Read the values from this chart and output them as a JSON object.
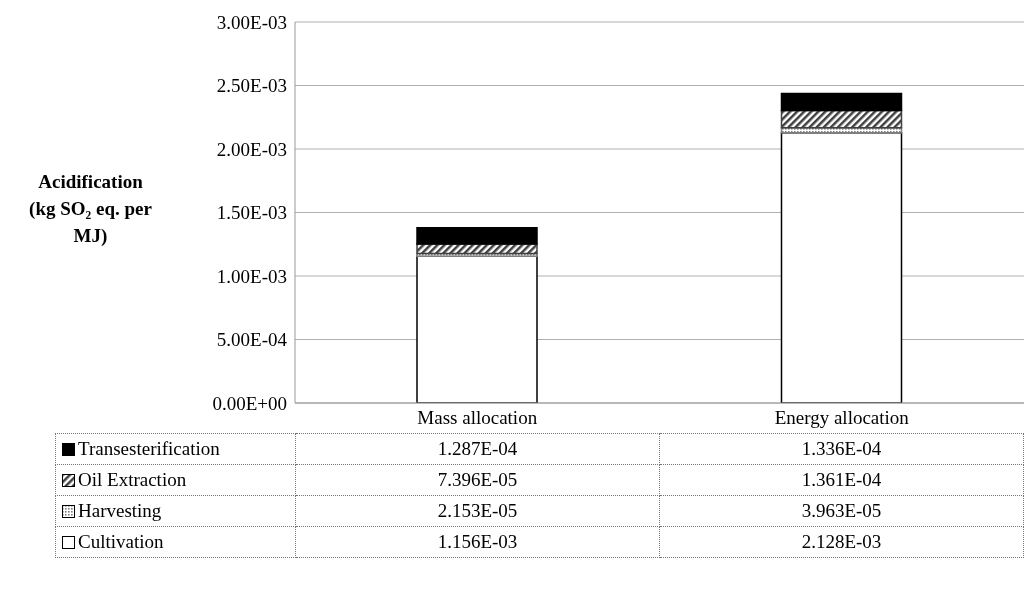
{
  "chart_data": {
    "type": "bar",
    "stacked": true,
    "ylabel": "Acidification (kg SO₂ eq. per MJ)",
    "categories": [
      "Mass allocation",
      "Energy allocation"
    ],
    "series": [
      {
        "name": "Cultivation",
        "color": "#ffffff",
        "values": [
          0.001156,
          0.002128
        ],
        "value_labels": [
          "1.156E-03",
          "2.128E-03"
        ]
      },
      {
        "name": "Harvesting",
        "color": "#7f7f7f",
        "values": [
          2.153e-05,
          3.963e-05
        ],
        "value_labels": [
          "2.153E-05",
          "3.963E-05"
        ]
      },
      {
        "name": "Oil Extraction",
        "color": "#404040",
        "values": [
          7.396e-05,
          0.0001361
        ],
        "value_labels": [
          "7.396E-05",
          "1.361E-04"
        ]
      },
      {
        "name": "Transesterification",
        "color": "#000000",
        "values": [
          0.0001287,
          0.0001336
        ],
        "value_labels": [
          "1.287E-04",
          "1.336E-04"
        ]
      }
    ],
    "ylim": [
      0,
      0.003
    ],
    "yticks": [
      {
        "value": 0,
        "label": "0.00E+00"
      },
      {
        "value": 0.0005,
        "label": "5.00E-04"
      },
      {
        "value": 0.001,
        "label": "1.00E-03"
      },
      {
        "value": 0.0015,
        "label": "1.50E-03"
      },
      {
        "value": 0.002,
        "label": "2.00E-03"
      },
      {
        "value": 0.0025,
        "label": "2.50E-03"
      },
      {
        "value": 0.003,
        "label": "3.00E-03"
      }
    ],
    "grid": "y",
    "legend": "bottom"
  }
}
